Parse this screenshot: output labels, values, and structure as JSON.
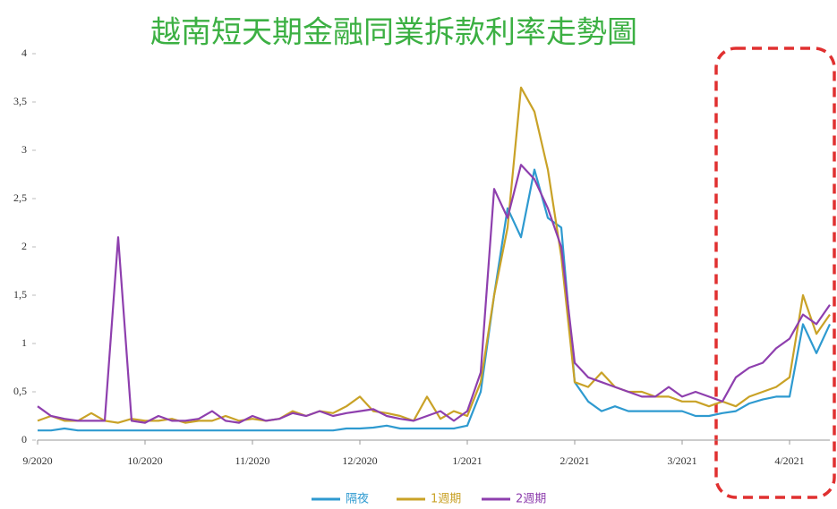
{
  "chart_data": {
    "type": "line",
    "title": "越南短天期金融同業拆款利率走勢圖",
    "categories": [
      "9/2020",
      null,
      null,
      null,
      null,
      null,
      null,
      null,
      "10/2020",
      null,
      null,
      null,
      null,
      null,
      null,
      null,
      "11/2020",
      null,
      null,
      null,
      null,
      null,
      null,
      null,
      "12/2020",
      null,
      null,
      null,
      null,
      null,
      null,
      null,
      "1/2021",
      null,
      null,
      null,
      null,
      null,
      null,
      null,
      "2/2021",
      null,
      null,
      null,
      null,
      null,
      null,
      null,
      "3/2021",
      null,
      null,
      null,
      null,
      null,
      null,
      null,
      "4/2021",
      null,
      null,
      null
    ],
    "series": [
      {
        "name": "隔夜",
        "color": "#2e9ad0",
        "values": [
          0.1,
          0.1,
          0.12,
          0.1,
          0.1,
          0.1,
          0.1,
          0.1,
          0.1,
          0.1,
          0.1,
          0.1,
          0.1,
          0.1,
          0.1,
          0.1,
          0.1,
          0.1,
          0.1,
          0.1,
          0.1,
          0.1,
          0.1,
          0.12,
          0.12,
          0.13,
          0.15,
          0.12,
          0.12,
          0.12,
          0.12,
          0.12,
          0.15,
          0.5,
          1.5,
          2.4,
          2.1,
          2.8,
          2.3,
          2.2,
          0.6,
          0.4,
          0.3,
          0.35,
          0.3,
          0.3,
          0.3,
          0.3,
          0.3,
          0.25,
          0.25,
          0.28,
          0.3,
          0.38,
          0.42,
          0.45,
          0.45,
          1.2,
          0.9,
          1.2
        ]
      },
      {
        "name": "1週期",
        "color": "#c9a227",
        "values": [
          0.2,
          0.25,
          0.2,
          0.2,
          0.28,
          0.2,
          0.18,
          0.22,
          0.2,
          0.2,
          0.22,
          0.18,
          0.2,
          0.2,
          0.25,
          0.2,
          0.22,
          0.2,
          0.22,
          0.3,
          0.25,
          0.3,
          0.28,
          0.35,
          0.45,
          0.3,
          0.28,
          0.25,
          0.2,
          0.45,
          0.22,
          0.3,
          0.25,
          0.6,
          1.5,
          2.2,
          3.65,
          3.4,
          2.8,
          1.9,
          0.6,
          0.55,
          0.7,
          0.55,
          0.5,
          0.5,
          0.45,
          0.45,
          0.4,
          0.4,
          0.35,
          0.4,
          0.35,
          0.45,
          0.5,
          0.55,
          0.65,
          1.5,
          1.1,
          1.3
        ]
      },
      {
        "name": "2週期",
        "color": "#8e3fae",
        "values": [
          0.35,
          0.25,
          0.22,
          0.2,
          0.2,
          0.2,
          2.1,
          0.2,
          0.18,
          0.25,
          0.2,
          0.2,
          0.22,
          0.3,
          0.2,
          0.18,
          0.25,
          0.2,
          0.22,
          0.28,
          0.25,
          0.3,
          0.25,
          0.28,
          0.3,
          0.32,
          0.25,
          0.22,
          0.2,
          0.25,
          0.3,
          0.2,
          0.3,
          0.7,
          2.6,
          2.3,
          2.85,
          2.7,
          2.4,
          2.0,
          0.8,
          0.65,
          0.6,
          0.55,
          0.5,
          0.45,
          0.45,
          0.55,
          0.45,
          0.5,
          0.45,
          0.4,
          0.65,
          0.75,
          0.8,
          0.95,
          1.05,
          1.3,
          1.2,
          1.4
        ]
      }
    ],
    "ylim": [
      0,
      4
    ],
    "yticks": [
      0,
      {
        "value": 0.5,
        "label": "0,5"
      },
      1,
      {
        "value": 1.5,
        "label": "1,5"
      },
      2,
      {
        "value": 2.5,
        "label": "2,5"
      },
      3,
      {
        "value": 3.5,
        "label": "3,5"
      },
      4
    ],
    "grid": false
  }
}
